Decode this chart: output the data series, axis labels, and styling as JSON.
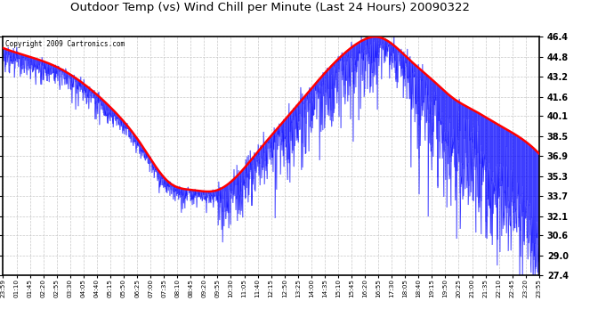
{
  "title": "Outdoor Temp (vs) Wind Chill per Minute (Last 24 Hours) 20090322",
  "copyright": "Copyright 2009 Cartronics.com",
  "yticks": [
    27.4,
    29.0,
    30.6,
    32.1,
    33.7,
    35.3,
    36.9,
    38.5,
    40.1,
    41.6,
    43.2,
    44.8,
    46.4
  ],
  "ymin": 27.4,
  "ymax": 46.4,
  "background_color": "#ffffff",
  "plot_bg_color": "#ffffff",
  "grid_color": "#c8c8c8",
  "blue_color": "#0000ff",
  "red_color": "#ff0000",
  "title_color": "#000000",
  "xtick_labels": [
    "23:59",
    "01:10",
    "01:45",
    "02:20",
    "02:55",
    "03:30",
    "04:05",
    "04:40",
    "05:15",
    "05:50",
    "06:25",
    "07:00",
    "07:35",
    "08:10",
    "08:45",
    "09:20",
    "09:55",
    "10:30",
    "11:05",
    "11:40",
    "12:15",
    "12:50",
    "13:25",
    "14:00",
    "14:35",
    "15:10",
    "15:45",
    "16:20",
    "16:55",
    "17:30",
    "18:05",
    "18:40",
    "19:15",
    "19:50",
    "20:25",
    "21:00",
    "21:35",
    "22:10",
    "22:45",
    "23:20",
    "23:55"
  ],
  "red_keypoints_x": [
    0,
    0.05,
    0.1,
    0.155,
    0.2,
    0.255,
    0.31,
    0.355,
    0.4,
    0.48,
    0.54,
    0.6,
    0.64,
    0.675,
    0.695,
    0.72,
    0.76,
    0.8,
    0.84,
    0.88,
    0.92,
    0.96,
    1.0
  ],
  "red_keypoints_y": [
    45.5,
    44.8,
    44.0,
    42.5,
    40.8,
    38.0,
    34.8,
    34.2,
    34.2,
    37.5,
    40.5,
    43.5,
    45.2,
    46.2,
    46.4,
    46.0,
    44.5,
    43.0,
    41.5,
    40.5,
    39.5,
    38.5,
    37.1
  ]
}
